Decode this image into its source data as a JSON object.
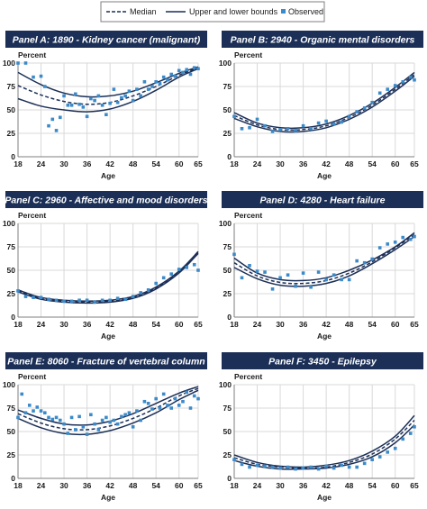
{
  "legend": {
    "median": "Median",
    "bounds": "Upper and lower bounds",
    "observed": "Observed"
  },
  "colors": {
    "line": "#1b2f57",
    "observed": "#3b8ac9",
    "title_bg": "#1b2f57",
    "grid": "#d9d9d9"
  },
  "chart_data": [
    {
      "type": "line",
      "title": "Panel A: 1890 - Kidney cancer (malignant)",
      "ylabel": "Percent",
      "xlabel": "Age",
      "xlim": [
        18,
        65
      ],
      "ylim": [
        0,
        100
      ],
      "xticks": [
        18,
        24,
        30,
        36,
        42,
        48,
        54,
        60,
        65
      ],
      "yticks": [
        0,
        25,
        50,
        75,
        100
      ],
      "grid": true,
      "series": [
        {
          "name": "Upper and lower bounds",
          "style": "solid",
          "x": [
            18,
            24,
            30,
            36,
            42,
            48,
            54,
            60,
            65
          ],
          "y": [
            90,
            77,
            68,
            64,
            65,
            70,
            79,
            89,
            96
          ]
        },
        {
          "name": "Median",
          "style": "dashed",
          "x": [
            18,
            24,
            30,
            36,
            42,
            48,
            54,
            60,
            65
          ],
          "y": [
            76,
            66,
            59,
            56,
            58,
            65,
            75,
            87,
            95
          ]
        },
        {
          "name": "Upper and lower bounds",
          "style": "solid",
          "x": [
            18,
            24,
            30,
            36,
            42,
            48,
            54,
            60,
            65
          ],
          "y": [
            62,
            54,
            50,
            48,
            51,
            59,
            71,
            85,
            94
          ]
        },
        {
          "name": "Observed",
          "style": "points",
          "x": [
            18,
            20,
            22,
            24,
            25,
            26,
            27,
            28,
            29,
            30,
            31,
            32,
            33,
            34,
            35,
            36,
            37,
            38,
            39,
            40,
            41,
            42,
            43,
            44,
            45,
            46,
            47,
            48,
            49,
            50,
            51,
            52,
            53,
            54,
            55,
            56,
            57,
            58,
            59,
            60,
            61,
            62,
            63,
            64,
            65
          ],
          "y": [
            100,
            100,
            85,
            86,
            75,
            33,
            40,
            28,
            42,
            65,
            55,
            55,
            67,
            56,
            53,
            43,
            62,
            60,
            65,
            55,
            45,
            57,
            72,
            58,
            63,
            65,
            70,
            60,
            72,
            65,
            80,
            72,
            75,
            80,
            78,
            85,
            82,
            88,
            86,
            92,
            90,
            93,
            88,
            95,
            94
          ]
        }
      ]
    },
    {
      "type": "line",
      "title": "Panel B: 2940 - Organic mental disorders",
      "ylabel": "Percent",
      "xlabel": "Age",
      "xlim": [
        18,
        65
      ],
      "ylim": [
        0,
        100
      ],
      "xticks": [
        18,
        24,
        30,
        36,
        42,
        48,
        54,
        60,
        65
      ],
      "yticks": [
        0,
        25,
        50,
        75,
        100
      ],
      "grid": true,
      "series": [
        {
          "name": "Upper and lower bounds",
          "style": "solid",
          "x": [
            18,
            24,
            30,
            36,
            42,
            48,
            54,
            60,
            65
          ],
          "y": [
            47,
            36,
            31,
            31,
            35,
            44,
            57,
            74,
            90
          ]
        },
        {
          "name": "Median",
          "style": "dashed",
          "x": [
            18,
            24,
            30,
            36,
            42,
            48,
            54,
            60,
            65
          ],
          "y": [
            44,
            34,
            29,
            29,
            33,
            42,
            55,
            72,
            88
          ]
        },
        {
          "name": "Upper and lower bounds",
          "style": "solid",
          "x": [
            18,
            24,
            30,
            36,
            42,
            48,
            54,
            60,
            65
          ],
          "y": [
            41,
            32,
            27,
            27,
            31,
            40,
            53,
            70,
            86
          ]
        },
        {
          "name": "Observed",
          "style": "points",
          "x": [
            18,
            20,
            22,
            24,
            26,
            28,
            30,
            32,
            34,
            36,
            38,
            40,
            42,
            44,
            46,
            48,
            50,
            52,
            54,
            56,
            58,
            60,
            62,
            64,
            65
          ],
          "y": [
            43,
            30,
            31,
            40,
            33,
            27,
            29,
            30,
            28,
            33,
            30,
            36,
            38,
            35,
            37,
            43,
            48,
            52,
            58,
            68,
            72,
            76,
            80,
            85,
            82
          ]
        }
      ]
    },
    {
      "type": "line",
      "title": "Panel C: 2960 - Affective and mood disorders",
      "ylabel": "Percent",
      "xlabel": "Age",
      "xlim": [
        18,
        65
      ],
      "ylim": [
        0,
        100
      ],
      "xticks": [
        18,
        24,
        30,
        36,
        42,
        48,
        54,
        60,
        65
      ],
      "yticks": [
        0,
        25,
        50,
        75,
        100
      ],
      "grid": true,
      "series": [
        {
          "name": "Upper and lower bounds",
          "style": "solid",
          "x": [
            18,
            24,
            30,
            36,
            42,
            48,
            54,
            60,
            65
          ],
          "y": [
            29,
            21,
            18,
            17,
            18,
            22,
            32,
            49,
            70
          ]
        },
        {
          "name": "Median",
          "style": "dashed",
          "x": [
            18,
            24,
            30,
            36,
            42,
            48,
            54,
            60,
            65
          ],
          "y": [
            28,
            20,
            17,
            16,
            17,
            21,
            31,
            48,
            69
          ]
        },
        {
          "name": "Upper and lower bounds",
          "style": "solid",
          "x": [
            18,
            24,
            30,
            36,
            42,
            48,
            54,
            60,
            65
          ],
          "y": [
            27,
            19,
            16,
            15,
            16,
            20,
            30,
            47,
            68
          ]
        },
        {
          "name": "Observed",
          "style": "points",
          "x": [
            18,
            20,
            22,
            24,
            26,
            28,
            30,
            32,
            34,
            36,
            38,
            40,
            42,
            44,
            46,
            48,
            50,
            52,
            54,
            56,
            58,
            60,
            62,
            64,
            65
          ],
          "y": [
            28,
            22,
            21,
            21,
            19,
            18,
            17,
            17,
            18,
            18,
            16,
            18,
            18,
            20,
            19,
            22,
            26,
            29,
            36,
            42,
            46,
            51,
            53,
            56,
            50
          ]
        }
      ]
    },
    {
      "type": "line",
      "title": "Panel D: 4280 - Heart failure",
      "ylabel": "Percent",
      "xlabel": "Age",
      "xlim": [
        18,
        65
      ],
      "ylim": [
        0,
        100
      ],
      "xticks": [
        18,
        24,
        30,
        36,
        42,
        48,
        54,
        60,
        65
      ],
      "yticks": [
        0,
        25,
        50,
        75,
        100
      ],
      "grid": true,
      "series": [
        {
          "name": "Upper and lower bounds",
          "style": "solid",
          "x": [
            18,
            24,
            30,
            36,
            42,
            48,
            54,
            60,
            65
          ],
          "y": [
            63,
            47,
            40,
            39,
            42,
            50,
            61,
            75,
            90
          ]
        },
        {
          "name": "Median",
          "style": "dashed",
          "x": [
            18,
            24,
            30,
            36,
            42,
            48,
            54,
            60,
            65
          ],
          "y": [
            58,
            44,
            37,
            36,
            39,
            47,
            59,
            74,
            88
          ]
        },
        {
          "name": "Upper and lower bounds",
          "style": "solid",
          "x": [
            18,
            24,
            30,
            36,
            42,
            48,
            54,
            60,
            65
          ],
          "y": [
            53,
            41,
            34,
            33,
            36,
            44,
            57,
            72,
            86
          ]
        },
        {
          "name": "Observed",
          "style": "points",
          "x": [
            18,
            20,
            22,
            24,
            26,
            28,
            30,
            32,
            34,
            36,
            38,
            40,
            42,
            44,
            46,
            48,
            50,
            52,
            54,
            56,
            58,
            60,
            62,
            64,
            65
          ],
          "y": [
            67,
            42,
            55,
            49,
            48,
            30,
            42,
            45,
            33,
            47,
            32,
            48,
            40,
            45,
            40,
            40,
            60,
            58,
            62,
            74,
            78,
            80,
            85,
            83,
            86
          ]
        }
      ]
    },
    {
      "type": "line",
      "title": "Panel E: 8060 - Fracture of vertebral column",
      "ylabel": "Percent",
      "xlabel": "Age",
      "xlim": [
        18,
        65
      ],
      "ylim": [
        0,
        100
      ],
      "xticks": [
        18,
        24,
        30,
        36,
        42,
        48,
        54,
        60,
        65
      ],
      "yticks": [
        0,
        25,
        50,
        75,
        100
      ],
      "grid": true,
      "series": [
        {
          "name": "Upper and lower bounds",
          "style": "solid",
          "x": [
            18,
            24,
            30,
            36,
            42,
            48,
            54,
            60,
            65
          ],
          "y": [
            73,
            64,
            58,
            57,
            61,
            69,
            80,
            91,
            98
          ]
        },
        {
          "name": "Median",
          "style": "dashed",
          "x": [
            18,
            24,
            30,
            36,
            42,
            48,
            54,
            60,
            65
          ],
          "y": [
            69,
            59,
            53,
            52,
            56,
            64,
            75,
            88,
            96
          ]
        },
        {
          "name": "Upper and lower bounds",
          "style": "solid",
          "x": [
            18,
            24,
            30,
            36,
            42,
            48,
            54,
            60,
            65
          ],
          "y": [
            64,
            54,
            48,
            47,
            51,
            59,
            70,
            84,
            94
          ]
        },
        {
          "name": "Observed",
          "style": "points",
          "x": [
            18,
            19,
            20,
            21,
            22,
            23,
            24,
            25,
            26,
            27,
            28,
            29,
            30,
            31,
            32,
            33,
            34,
            35,
            36,
            37,
            38,
            39,
            40,
            41,
            42,
            43,
            44,
            45,
            46,
            47,
            48,
            49,
            50,
            51,
            52,
            53,
            54,
            55,
            56,
            57,
            58,
            59,
            60,
            61,
            62,
            63,
            64,
            65
          ],
          "y": [
            65,
            90,
            70,
            78,
            72,
            76,
            72,
            70,
            65,
            63,
            65,
            62,
            58,
            48,
            65,
            52,
            66,
            55,
            47,
            68,
            58,
            52,
            62,
            65,
            60,
            62,
            58,
            66,
            68,
            70,
            55,
            72,
            62,
            82,
            80,
            74,
            85,
            75,
            90,
            78,
            75,
            85,
            78,
            82,
            92,
            75,
            88,
            85
          ]
        }
      ]
    },
    {
      "type": "line",
      "title": "Panel F: 3450 - Epilepsy",
      "ylabel": "Percent",
      "xlabel": "Age",
      "xlim": [
        18,
        65
      ],
      "ylim": [
        0,
        100
      ],
      "xticks": [
        18,
        24,
        30,
        36,
        42,
        48,
        54,
        60,
        65
      ],
      "yticks": [
        0,
        25,
        50,
        75,
        100
      ],
      "grid": true,
      "series": [
        {
          "name": "Upper and lower bounds",
          "style": "solid",
          "x": [
            18,
            24,
            30,
            36,
            42,
            48,
            54,
            60,
            65
          ],
          "y": [
            25,
            17,
            13,
            12,
            14,
            19,
            29,
            45,
            67
          ]
        },
        {
          "name": "Median",
          "style": "dashed",
          "x": [
            18,
            24,
            30,
            36,
            42,
            48,
            54,
            60,
            65
          ],
          "y": [
            22,
            15,
            12,
            11,
            12,
            17,
            26,
            42,
            62
          ]
        },
        {
          "name": "Upper and lower bounds",
          "style": "solid",
          "x": [
            18,
            24,
            30,
            36,
            42,
            48,
            54,
            60,
            65
          ],
          "y": [
            19,
            13,
            10,
            10,
            11,
            15,
            23,
            38,
            57
          ]
        },
        {
          "name": "Observed",
          "style": "points",
          "x": [
            18,
            20,
            22,
            24,
            26,
            28,
            30,
            32,
            34,
            36,
            38,
            40,
            42,
            44,
            46,
            48,
            50,
            52,
            54,
            56,
            58,
            60,
            62,
            64,
            65
          ],
          "y": [
            20,
            15,
            12,
            14,
            13,
            12,
            11,
            12,
            10,
            11,
            12,
            10,
            13,
            11,
            14,
            12,
            12,
            16,
            20,
            23,
            28,
            32,
            42,
            48,
            55
          ]
        }
      ]
    }
  ]
}
